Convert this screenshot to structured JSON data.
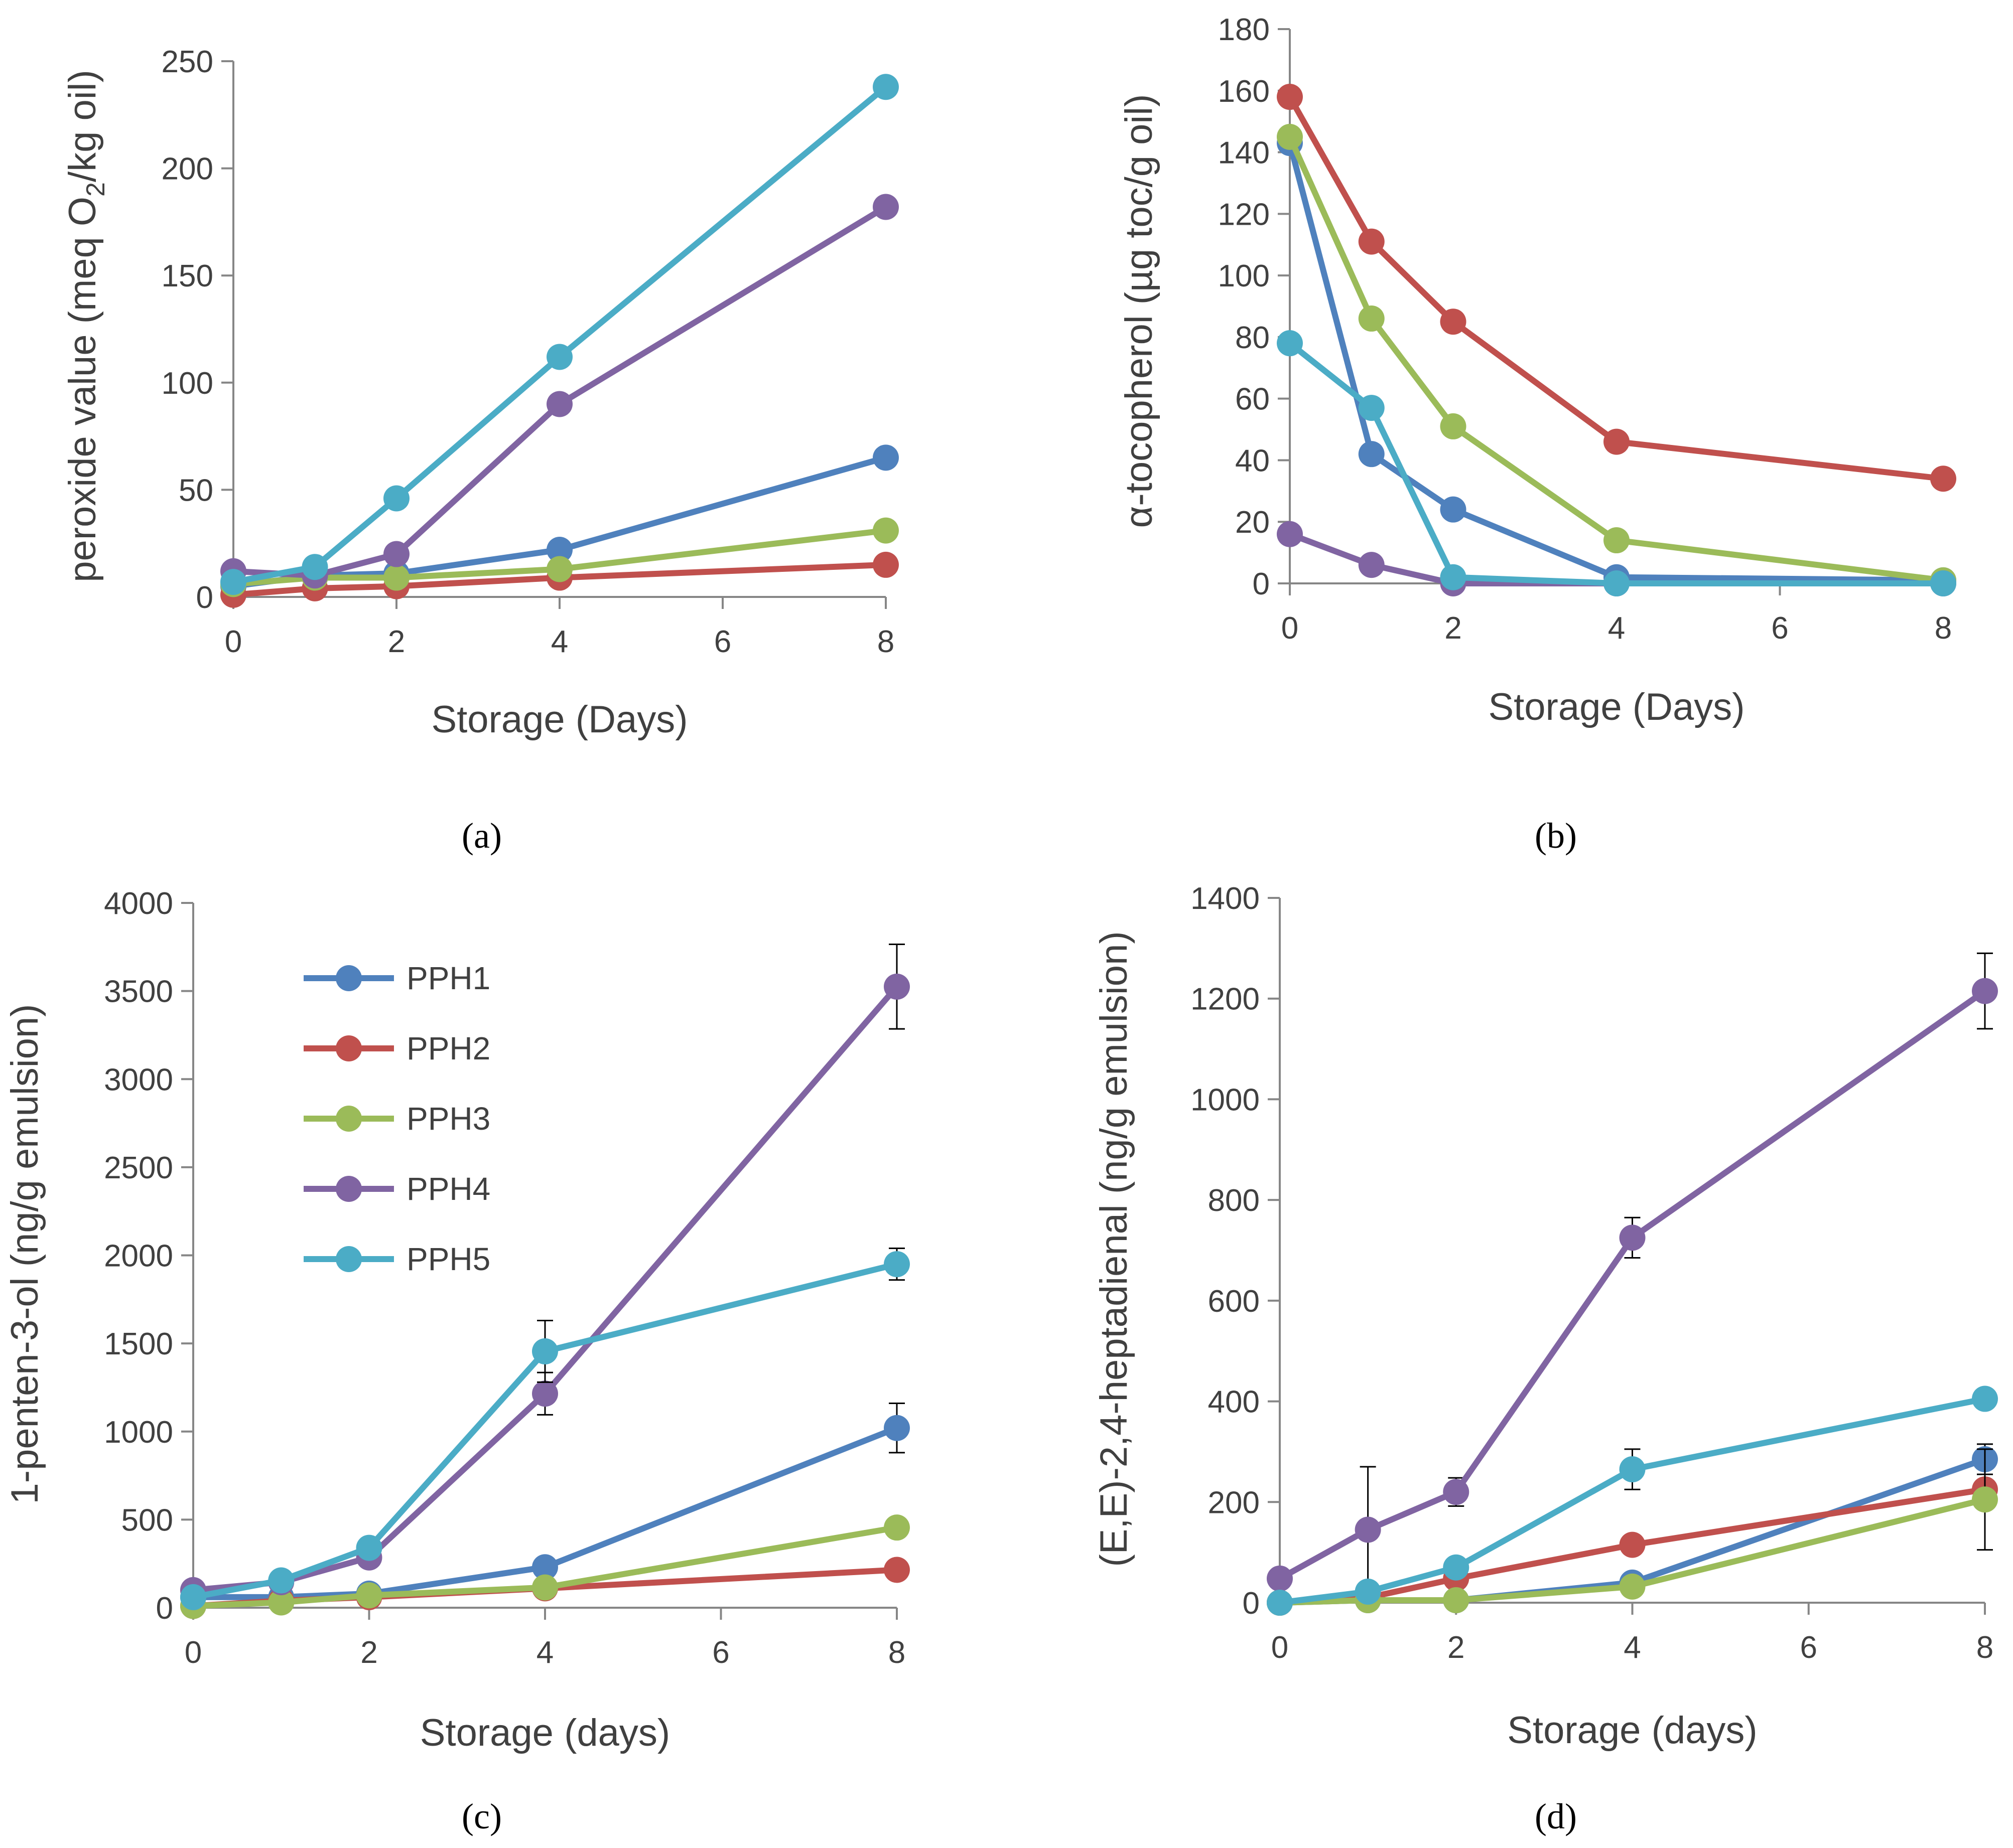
{
  "series_styles": [
    {
      "name": "PPH1",
      "color": "#4F81BD"
    },
    {
      "name": "PPH2",
      "color": "#C0504D"
    },
    {
      "name": "PPH3",
      "color": "#9BBB59"
    },
    {
      "name": "PPH4",
      "color": "#8064A2"
    },
    {
      "name": "PPH5",
      "color": "#4BACC6"
    }
  ],
  "legend": {
    "items": [
      "PPH1",
      "PPH2",
      "PPH3",
      "PPH4",
      "PPH5"
    ]
  },
  "chart_data": [
    {
      "type": "line",
      "panel_label": "(a)",
      "title": "",
      "xlabel": "Storage (Days)",
      "ylabel_prefix": "peroxide value (meq O",
      "ylabel_sub": "2",
      "ylabel_suffix": "/kg oil)",
      "xlim": [
        0,
        8
      ],
      "ylim": [
        0,
        250
      ],
      "xticks": [
        0,
        2,
        4,
        6,
        8
      ],
      "yticks": [
        0,
        50,
        100,
        150,
        200,
        250
      ],
      "x": [
        0,
        1,
        2,
        4,
        8
      ],
      "series": [
        {
          "name": "PPH1",
          "values": [
            5,
            10,
            11,
            22,
            65
          ]
        },
        {
          "name": "PPH2",
          "values": [
            1,
            4,
            5,
            9,
            15
          ]
        },
        {
          "name": "PPH3",
          "values": [
            6,
            9,
            9,
            13,
            31
          ]
        },
        {
          "name": "PPH4",
          "values": [
            12,
            10,
            20,
            90,
            182
          ]
        },
        {
          "name": "PPH5",
          "values": [
            7,
            14,
            46,
            112,
            238
          ]
        }
      ]
    },
    {
      "type": "line",
      "panel_label": "(b)",
      "title": "",
      "xlabel": "Storage (Days)",
      "ylabel": "α-tocopherol (µg toc/g oil)",
      "xlim": [
        0,
        8
      ],
      "ylim": [
        0,
        180
      ],
      "xticks": [
        0,
        2,
        4,
        6,
        8
      ],
      "yticks": [
        0,
        20,
        40,
        60,
        80,
        100,
        120,
        140,
        160,
        180
      ],
      "x": [
        0,
        1,
        2,
        4,
        8
      ],
      "series": [
        {
          "name": "PPH1",
          "values": [
            143,
            42,
            24,
            2,
            1
          ]
        },
        {
          "name": "PPH2",
          "values": [
            158,
            111,
            85,
            46,
            34
          ]
        },
        {
          "name": "PPH3",
          "values": [
            145,
            86,
            51,
            14,
            1
          ]
        },
        {
          "name": "PPH4",
          "values": [
            16,
            6,
            0,
            0,
            0
          ]
        },
        {
          "name": "PPH5",
          "values": [
            78,
            57,
            2,
            0,
            0
          ]
        }
      ]
    },
    {
      "type": "line",
      "panel_label": "(c)",
      "title": "",
      "xlabel": "Storage (days)",
      "ylabel": "1-penten-3-ol (ng/g emulsion)",
      "xlim": [
        0,
        8
      ],
      "ylim": [
        0,
        4000
      ],
      "xticks": [
        0,
        2,
        4,
        6,
        8
      ],
      "yticks": [
        0,
        500,
        1000,
        1500,
        2000,
        2500,
        3000,
        3500,
        4000
      ],
      "x": [
        0,
        1,
        2,
        4,
        8
      ],
      "has_legend": true,
      "series": [
        {
          "name": "PPH1",
          "values": [
            60,
            60,
            80,
            230,
            1020
          ],
          "errors": [
            0,
            0,
            0,
            0,
            140
          ]
        },
        {
          "name": "PPH2",
          "values": [
            10,
            40,
            60,
            110,
            215
          ],
          "errors": [
            0,
            0,
            0,
            0,
            0
          ]
        },
        {
          "name": "PPH3",
          "values": [
            10,
            30,
            70,
            115,
            455
          ],
          "errors": [
            0,
            0,
            0,
            0,
            0
          ]
        },
        {
          "name": "PPH4",
          "values": [
            100,
            145,
            285,
            1215,
            3525
          ],
          "errors": [
            0,
            0,
            0,
            120,
            240
          ]
        },
        {
          "name": "PPH5",
          "values": [
            60,
            155,
            340,
            1455,
            1950
          ],
          "errors": [
            0,
            0,
            0,
            175,
            90
          ]
        }
      ]
    },
    {
      "type": "line",
      "panel_label": "(d)",
      "title": "",
      "xlabel": "Storage (days)",
      "ylabel": "(E,E)-2,4-heptadienal (ng/g emulsion)",
      "xlim": [
        0,
        8
      ],
      "ylim": [
        0,
        1400
      ],
      "xticks": [
        0,
        2,
        4,
        6,
        8
      ],
      "yticks": [
        0,
        200,
        400,
        600,
        800,
        1000,
        1200,
        1400
      ],
      "x": [
        0,
        1,
        2,
        4,
        8
      ],
      "series": [
        {
          "name": "PPH1",
          "values": [
            0,
            5,
            5,
            40,
            285
          ],
          "errors": [
            0,
            0,
            0,
            0,
            30
          ]
        },
        {
          "name": "PPH2",
          "values": [
            0,
            10,
            48,
            115,
            225
          ],
          "errors": [
            0,
            0,
            0,
            0,
            0
          ]
        },
        {
          "name": "PPH3",
          "values": [
            0,
            5,
            5,
            32,
            205
          ],
          "errors": [
            0,
            0,
            0,
            0,
            100
          ]
        },
        {
          "name": "PPH4",
          "values": [
            48,
            145,
            220,
            725,
            1215
          ],
          "errors": [
            0,
            125,
            28,
            40,
            75
          ]
        },
        {
          "name": "PPH5",
          "values": [
            0,
            22,
            70,
            265,
            405
          ],
          "errors": [
            0,
            0,
            18,
            40,
            0
          ]
        }
      ]
    }
  ]
}
